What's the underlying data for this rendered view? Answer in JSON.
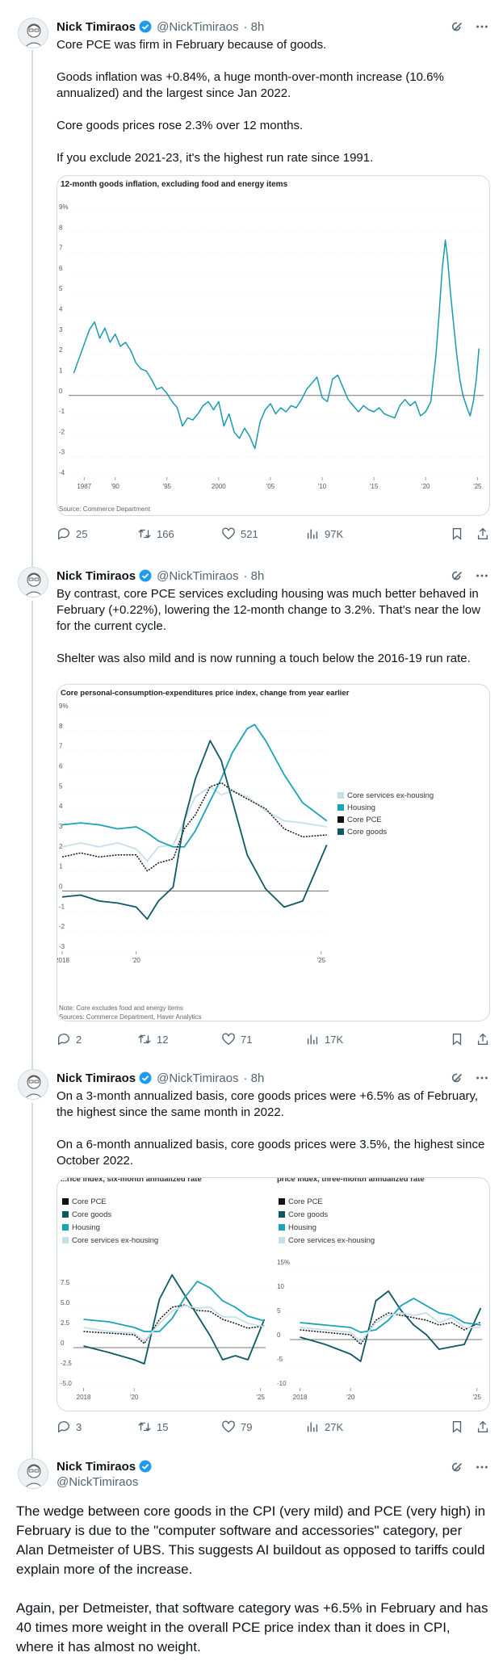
{
  "author": {
    "name": "Nick Timiraos",
    "handle": "@NickTimiraos",
    "time": "· 8h"
  },
  "tweets": [
    {
      "paragraphs": [
        "Core PCE was firm in February because of goods.",
        "Goods inflation was +0.84%, a huge month-over-month increase (10.6% annualized) and the largest since Jan 2022.",
        "Core goods prices rose 2.3% over 12 months.",
        "If you exclude 2021-23, it's the highest run rate since 1991."
      ],
      "stats": {
        "replies": "25",
        "reposts": "166",
        "likes": "521",
        "views": "97K"
      }
    },
    {
      "paragraphs": [
        "By contrast, core PCE services excluding housing was much better behaved in February (+0.22%), lowering the 12-month change to 3.2%. That's near the low for the current cycle.",
        "Shelter was also mild and is now running a touch below the 2016-19 run rate."
      ],
      "stats": {
        "replies": "2",
        "reposts": "12",
        "likes": "71",
        "views": "17K"
      }
    },
    {
      "paragraphs": [
        "On a 3-month annualized basis, core goods prices were +6.5% as of February, the highest since the same month in 2022.",
        "On a 6-month annualized basis, core goods prices were 3.5%, the highest since October 2022."
      ],
      "stats": {
        "replies": "3",
        "reposts": "15",
        "likes": "79",
        "views": "27K"
      }
    },
    {
      "paragraphs": [
        "The wedge between core goods in the CPI (very mild) and PCE (very high) in February is due to the \"computer software and accessories\" category, per Alan Detmeister of UBS. This suggests AI buildout as opposed to tariffs could explain more of the increase.",
        "Again, per Detmeister, that software category was +6.5% in February and has 40 times more weight in the overall PCE price index than it does in CPI, where it has almost no weight."
      ]
    }
  ],
  "colors": {
    "goods": "#1a9aae",
    "core_pce": "#111111",
    "core_goods": "#0e5866",
    "housing": "#1aa3b8",
    "services_ex_housing": "#c7dfe9"
  },
  "chart_data": [
    {
      "type": "line",
      "title": "12-month goods inflation, excluding food and energy items",
      "source": "Source: Commerce Department",
      "y_unit": "%",
      "ylim": [
        -4,
        9
      ],
      "y_ticks": [
        -4,
        -3,
        -2,
        -1,
        0,
        1,
        2,
        3,
        4,
        5,
        6,
        7,
        8,
        9
      ],
      "x_tick_labels": [
        "1987",
        "'90",
        "'95",
        "2000",
        "'05",
        "'10",
        "'15",
        "'20",
        "'25"
      ],
      "x_tick_years": [
        1987,
        1990,
        1995,
        2000,
        2005,
        2010,
        2015,
        2020,
        2025
      ],
      "xlim": [
        1985.5,
        2025.6
      ],
      "series": [
        {
          "x": [
            1986,
            1986.5,
            1987,
            1987.5,
            1988,
            1988.5,
            1989,
            1989.5,
            1990,
            1990.5,
            1991,
            1991.5,
            1992,
            1992.5,
            1993,
            1993.5,
            1994,
            1994.5,
            1995,
            1995.5,
            1996,
            1996.5,
            1997,
            1997.5,
            1998,
            1998.5,
            1999,
            1999.5,
            2000,
            2000.5,
            2001,
            2001.5,
            2002,
            2002.5,
            2003,
            2003.5,
            2004,
            2004.5,
            2005,
            2005.5,
            2006,
            2006.5,
            2007,
            2007.5,
            2008,
            2008.5,
            2009,
            2009.5,
            2010,
            2010.5,
            2011,
            2011.5,
            2012,
            2012.5,
            2013,
            2013.5,
            2014,
            2014.5,
            2015,
            2015.5,
            2016,
            2016.5,
            2017,
            2017.5,
            2018,
            2018.5,
            2019,
            2019.5,
            2020,
            2020.5,
            2021,
            2021.3,
            2021.6,
            2021.9,
            2022.1,
            2022.4,
            2022.7,
            2023,
            2023.3,
            2023.6,
            2024,
            2024.3,
            2024.6,
            2024.9,
            2025.15
          ],
          "values": [
            1.1,
            1.8,
            2.5,
            3.2,
            3.6,
            2.8,
            3.3,
            2.6,
            3.0,
            2.4,
            2.6,
            2.2,
            1.6,
            1.3,
            1.2,
            0.8,
            0.3,
            0.4,
            0.1,
            -0.3,
            -0.6,
            -1.5,
            -1.1,
            -1.2,
            -0.9,
            -0.5,
            -0.3,
            -0.7,
            -0.3,
            -1.5,
            -0.9,
            -1.8,
            -2.1,
            -1.6,
            -2.0,
            -2.6,
            -1.3,
            -0.7,
            -0.4,
            -0.9,
            -0.6,
            -0.8,
            -0.5,
            -0.6,
            -0.2,
            0.3,
            0.6,
            0.9,
            -0.1,
            -0.3,
            0.8,
            1.0,
            0.4,
            -0.2,
            -0.5,
            -0.8,
            -0.5,
            -0.7,
            -0.8,
            -0.6,
            -0.9,
            -1.0,
            -1.1,
            -0.5,
            -0.2,
            -0.5,
            -0.3,
            -1.0,
            -0.8,
            -0.3,
            2.0,
            4.0,
            6.2,
            7.6,
            6.8,
            5.0,
            3.5,
            2.0,
            0.8,
            0.0,
            -0.6,
            -1.0,
            -0.3,
            0.8,
            2.3
          ]
        }
      ]
    },
    {
      "type": "line",
      "title": "Core personal-consumption-expenditures price index, change from year earlier",
      "note": "Note: Core excludes food and energy items",
      "source": "Sources: Commerce Department, Haver Analytics",
      "y_unit": "%",
      "ylim": [
        -3,
        9
      ],
      "y_ticks": [
        -3,
        -2,
        -1,
        0,
        1,
        2,
        3,
        4,
        5,
        6,
        7,
        8,
        9
      ],
      "x_tick_labels": [
        "2018",
        "'20",
        "'25"
      ],
      "x_tick_years": [
        2018,
        2020,
        2025
      ],
      "xlim": [
        2018,
        2025.2
      ],
      "legend": [
        "Core services ex-housing",
        "Housing",
        "Core PCE",
        "Core goods"
      ],
      "series": [
        {
          "name": "Core services ex-housing",
          "x": [
            2018,
            2018.5,
            2019,
            2019.5,
            2020,
            2020.3,
            2020.6,
            2021,
            2021.3,
            2021.6,
            2022,
            2022.3,
            2022.6,
            2023,
            2023.5,
            2024,
            2024.5,
            2025.15
          ],
          "values": [
            2.2,
            2.4,
            2.2,
            2.4,
            2.1,
            1.5,
            2.2,
            2.3,
            3.5,
            4.7,
            5.2,
            4.8,
            5.0,
            4.7,
            4.0,
            3.5,
            3.4,
            3.2
          ]
        },
        {
          "name": "Housing",
          "x": [
            2018,
            2018.5,
            2019,
            2019.5,
            2020,
            2020.3,
            2020.6,
            2021,
            2021.3,
            2021.6,
            2022,
            2022.3,
            2022.6,
            2023,
            2023.2,
            2023.5,
            2024,
            2024.5,
            2025.15
          ],
          "values": [
            3.3,
            3.4,
            3.3,
            3.1,
            3.2,
            2.9,
            2.5,
            2.2,
            2.2,
            3.0,
            4.5,
            5.6,
            6.9,
            8.1,
            8.3,
            7.5,
            5.8,
            4.4,
            3.5
          ]
        },
        {
          "name": "Core PCE",
          "x": [
            2018,
            2018.5,
            2019,
            2019.5,
            2020,
            2020.3,
            2020.6,
            2021,
            2021.3,
            2021.6,
            2022,
            2022.3,
            2022.6,
            2023,
            2023.5,
            2024,
            2024.5,
            2025.15
          ],
          "values": [
            1.7,
            1.9,
            1.7,
            1.8,
            1.8,
            1.0,
            1.4,
            1.6,
            3.1,
            3.8,
            5.2,
            5.4,
            5.0,
            4.6,
            4.1,
            3.1,
            2.7,
            2.8
          ]
        },
        {
          "name": "Core goods",
          "x": [
            2018,
            2018.5,
            2019,
            2019.5,
            2020,
            2020.3,
            2020.6,
            2021,
            2021.3,
            2021.6,
            2022,
            2022.3,
            2022.6,
            2023,
            2023.5,
            2024,
            2024.5,
            2025.15
          ],
          "values": [
            -0.3,
            -0.2,
            -0.5,
            -0.6,
            -0.8,
            -1.4,
            -0.5,
            0.2,
            3.5,
            5.6,
            7.5,
            6.5,
            4.5,
            1.8,
            0.1,
            -0.8,
            -0.5,
            2.3
          ]
        }
      ]
    },
    {
      "type": "line",
      "title": "...rice index, six-month annualized rate",
      "y_unit": "",
      "ylim": [
        -5,
        10
      ],
      "y_ticks": [
        -5,
        -2.5,
        0,
        2.5,
        5,
        7.5
      ],
      "y_tick_labels": [
        "-5.0",
        "-2.5",
        "0",
        "2.5",
        "5.0",
        "7.5"
      ],
      "x_tick_labels": [
        "2018",
        "'20",
        "'25"
      ],
      "x_tick_years": [
        2018,
        2020,
        2025
      ],
      "xlim": [
        2017.6,
        2025.2
      ],
      "legend": [
        "Core PCE",
        "Core goods",
        "Housing",
        "Core services ex-housing"
      ],
      "series": [
        {
          "name": "Core PCE",
          "x": [
            2018,
            2019,
            2020,
            2020.4,
            2021,
            2021.5,
            2022,
            2022.5,
            2023,
            2023.5,
            2024,
            2024.5,
            2025.15
          ],
          "values": [
            2.0,
            1.8,
            1.6,
            0.5,
            3.5,
            5.0,
            5.3,
            4.6,
            4.5,
            3.5,
            3.0,
            2.4,
            2.7
          ]
        },
        {
          "name": "Core goods",
          "x": [
            2018,
            2019,
            2020,
            2020.4,
            2021,
            2021.5,
            2022,
            2022.5,
            2023,
            2023.5,
            2024,
            2024.5,
            2025.15
          ],
          "values": [
            0.2,
            -0.6,
            -1.5,
            -2.0,
            6.0,
            9.0,
            6.5,
            4.0,
            1.5,
            -1.5,
            -1.0,
            -1.5,
            3.5
          ]
        },
        {
          "name": "Housing",
          "x": [
            2018,
            2019,
            2020,
            2020.4,
            2021,
            2021.5,
            2022,
            2022.5,
            2023,
            2023.5,
            2024,
            2024.5,
            2025.15
          ],
          "values": [
            3.5,
            3.2,
            2.5,
            2.0,
            2.0,
            3.6,
            6.2,
            8.2,
            7.4,
            5.8,
            5.0,
            3.9,
            3.3
          ]
        },
        {
          "name": "Core services ex-housing",
          "x": [
            2018,
            2019,
            2020,
            2020.4,
            2021,
            2021.5,
            2022,
            2022.5,
            2023,
            2023.5,
            2024,
            2024.5,
            2025.15
          ],
          "values": [
            2.5,
            2.0,
            1.8,
            0.8,
            3.0,
            4.5,
            5.2,
            4.9,
            5.0,
            3.8,
            3.8,
            3.0,
            2.6
          ]
        }
      ]
    },
    {
      "type": "line",
      "title": "price index, three-month annualized rate",
      "y_unit": "%",
      "ylim": [
        -10,
        15
      ],
      "y_ticks": [
        -10,
        -5,
        0,
        5,
        10,
        15
      ],
      "x_tick_labels": [
        "2018",
        "'20",
        "'25"
      ],
      "x_tick_years": [
        2018,
        2020,
        2025
      ],
      "xlim": [
        2017.6,
        2025.2
      ],
      "legend": [
        "Core PCE",
        "Core goods",
        "Housing",
        "Core services ex-housing"
      ],
      "series": [
        {
          "name": "Core PCE",
          "x": [
            2018,
            2019,
            2020,
            2020.4,
            2021,
            2021.5,
            2022,
            2022.5,
            2023,
            2023.5,
            2024,
            2024.5,
            2025.15
          ],
          "values": [
            2.0,
            1.5,
            1.0,
            -1.0,
            4.0,
            5.5,
            5.0,
            4.5,
            4.0,
            3.0,
            3.5,
            2.0,
            3.6
          ]
        },
        {
          "name": "Core goods",
          "x": [
            2018,
            2019,
            2020,
            2020.4,
            2021,
            2021.5,
            2022,
            2022.5,
            2023,
            2023.5,
            2024,
            2024.5,
            2025.15
          ],
          "values": [
            0.5,
            -1.0,
            -3.0,
            -4.5,
            8.0,
            10.0,
            6.0,
            3.0,
            1.0,
            -2.0,
            -1.5,
            -1.0,
            6.5
          ]
        },
        {
          "name": "Housing",
          "x": [
            2018,
            2019,
            2020,
            2020.4,
            2021,
            2021.5,
            2022,
            2022.5,
            2023,
            2023.5,
            2024,
            2024.5,
            2025.15
          ],
          "values": [
            3.5,
            3.0,
            2.5,
            1.5,
            2.0,
            4.0,
            7.0,
            8.5,
            7.0,
            5.5,
            5.0,
            3.5,
            3.0
          ]
        },
        {
          "name": "Core services ex-housing",
          "x": [
            2018,
            2019,
            2020,
            2020.4,
            2021,
            2021.5,
            2022,
            2022.5,
            2023,
            2023.5,
            2024,
            2024.5,
            2025.15
          ],
          "values": [
            2.5,
            2.0,
            1.5,
            -0.5,
            3.5,
            5.0,
            5.5,
            5.0,
            5.5,
            3.5,
            4.5,
            2.5,
            2.5
          ]
        }
      ]
    }
  ]
}
